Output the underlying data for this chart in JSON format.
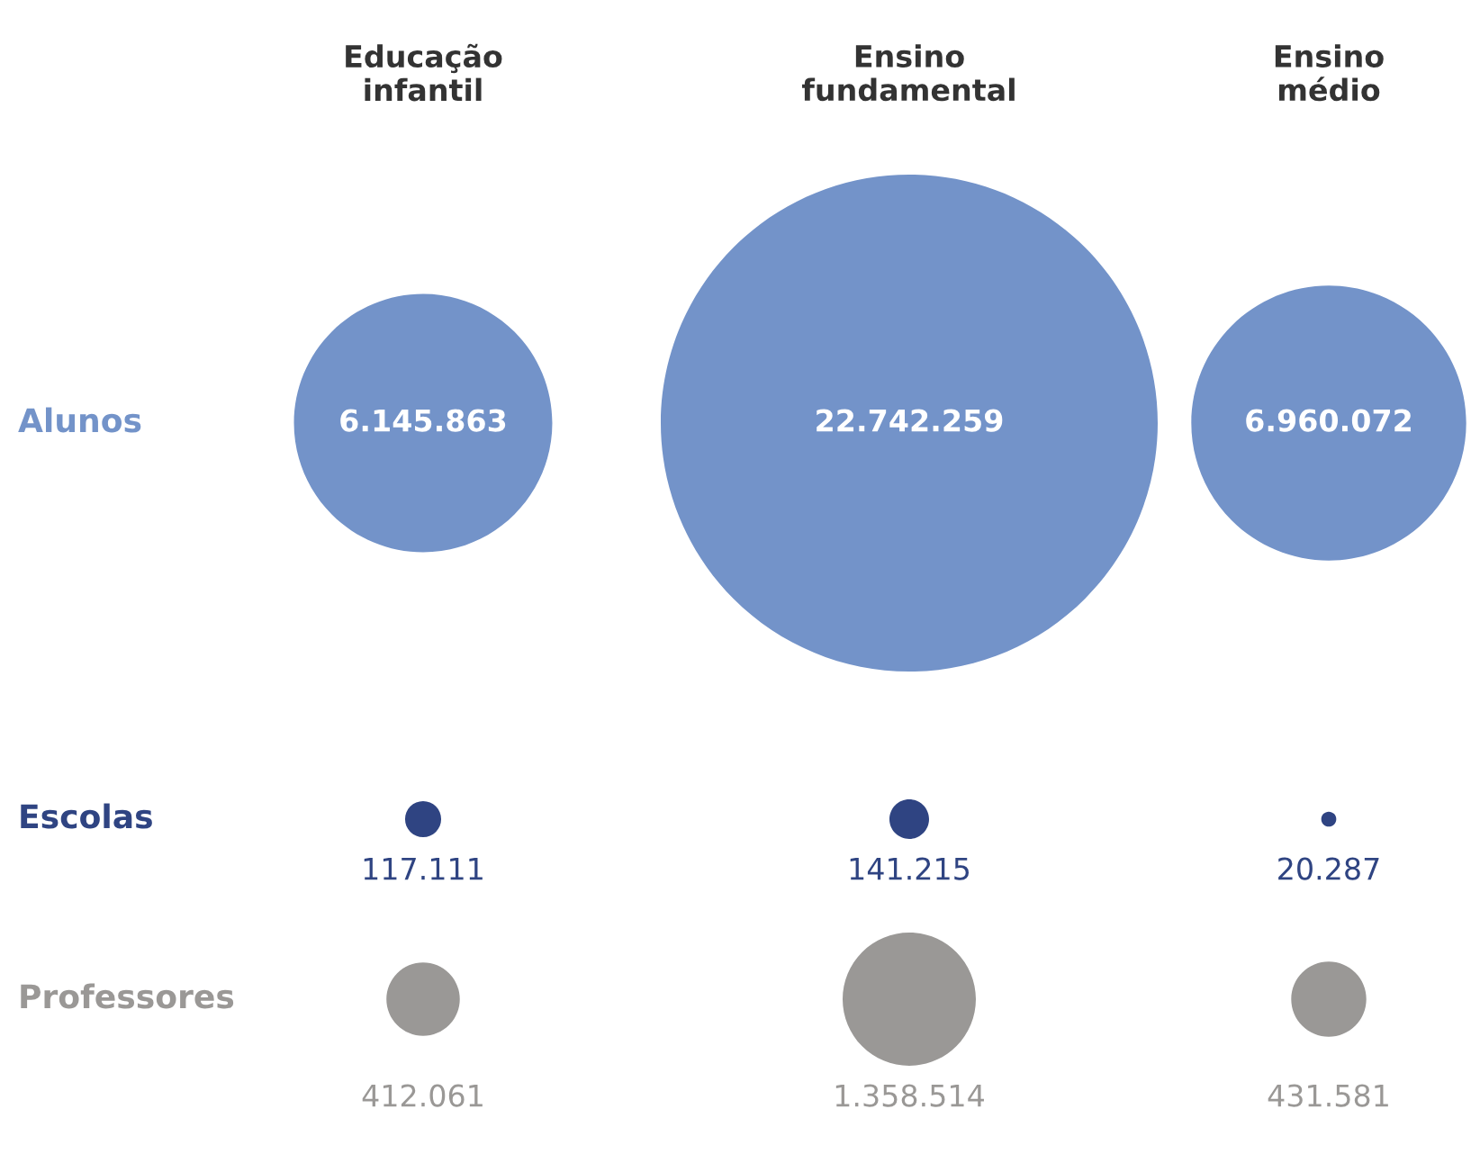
{
  "chart_data": {
    "type": "other",
    "categories": [
      "Educação\ninfantil",
      "Ensino\nfundamental",
      "Ensino\nmédio"
    ],
    "series": [
      {
        "name": "Alunos",
        "color": "#7393c9",
        "values": [
          6145863,
          22742259,
          6960072
        ],
        "value_labels": [
          "6.145.863",
          "22.742.259",
          "6.960.072"
        ]
      },
      {
        "name": "Escolas",
        "color": "#2f4482",
        "values": [
          117111,
          141215,
          20287
        ],
        "value_labels": [
          "117.111",
          "141.215",
          "20.287"
        ]
      },
      {
        "name": "Professores",
        "color": "#9a9896",
        "values": [
          412061,
          1358514,
          431581
        ],
        "value_labels": [
          "412.061",
          "1.358.514",
          "431.581"
        ]
      }
    ]
  }
}
